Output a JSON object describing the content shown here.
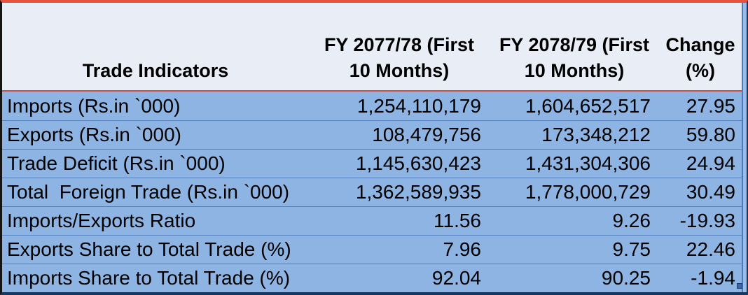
{
  "chart_data": {
    "type": "table",
    "title": "Trade Indicators",
    "columns": [
      "Trade Indicators",
      "FY 2077/78 (First 10 Months)",
      "FY 2078/79 (First 10 Months)",
      "Change (%)"
    ],
    "rows": [
      [
        "Imports (Rs.in `000)",
        "1,254,110,179",
        "1,604,652,517",
        "27.95"
      ],
      [
        "Exports (Rs.in `000)",
        "108,479,756",
        "173,348,212",
        "59.80"
      ],
      [
        "Trade Deficit (Rs.in `000)",
        "1,145,630,423",
        "1,431,304,306",
        "24.94"
      ],
      [
        "Total  Foreign Trade (Rs.in `000)",
        "1,362,589,935",
        "1,778,000,729",
        "30.49"
      ],
      [
        "Imports/Exports Ratio",
        "11.56",
        "9.26",
        "-19.93"
      ],
      [
        "Exports Share to Total Trade (%)",
        "7.96",
        "9.75",
        "22.46"
      ],
      [
        "Imports Share to Total Trade (%)",
        "92.04",
        "90.25",
        "-1.94"
      ]
    ]
  },
  "header_display": {
    "col1": "Trade Indicators",
    "col2_line1": "FY 2077/78 (First",
    "col2_line2": "10 Months)",
    "col3_line1": "FY 2078/79 (First",
    "col3_line2": "10 Months)",
    "col4_line1": "Change",
    "col4_line2": "(%)"
  },
  "colors": {
    "top_border": "#E8513C",
    "left_border": "#141414",
    "bottom_border": "#17375E",
    "right_outer_border": "#17375E",
    "right_inner_border": "#4A7ABF",
    "header_bg": "#E9EEF6",
    "header_underline": "#C0504D",
    "row_bg": "#8DB4E2",
    "row_divider": "#5581BE",
    "text": "#000000",
    "fill_handle": "#3E66A5"
  }
}
